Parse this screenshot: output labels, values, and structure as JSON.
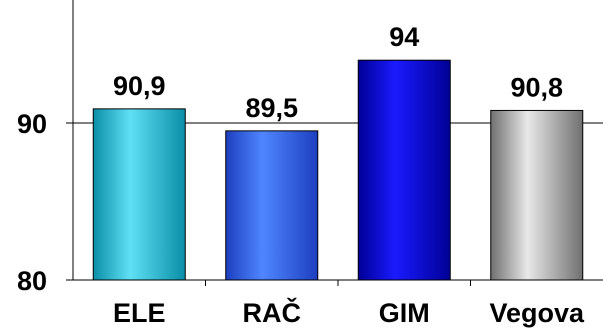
{
  "chart_data": {
    "type": "bar",
    "categories": [
      "ELE",
      "RAČ",
      "GIM",
      "Vegova"
    ],
    "values": [
      90.9,
      89.5,
      94,
      90.8
    ],
    "value_labels": [
      "90,9",
      "89,5",
      "94",
      "90,8"
    ],
    "yticks": [
      80,
      90
    ],
    "ylim": [
      80,
      100
    ],
    "grid": true,
    "legend": "none",
    "colors": {
      "ELE": {
        "left": "#0a8fa8",
        "mid": "#5fe0f5",
        "right": "#0a8fa8"
      },
      "RAČ": {
        "left": "#1d3fbf",
        "mid": "#4f86ff",
        "right": "#1d3fbf"
      },
      "GIM": {
        "left": "#000096",
        "mid": "#1a1aff",
        "right": "#000096"
      },
      "Vegova": {
        "left": "#707070",
        "mid": "#e8e8e8",
        "right": "#707070"
      }
    },
    "gridline_color": "#000000",
    "axis_color": "#000000"
  }
}
